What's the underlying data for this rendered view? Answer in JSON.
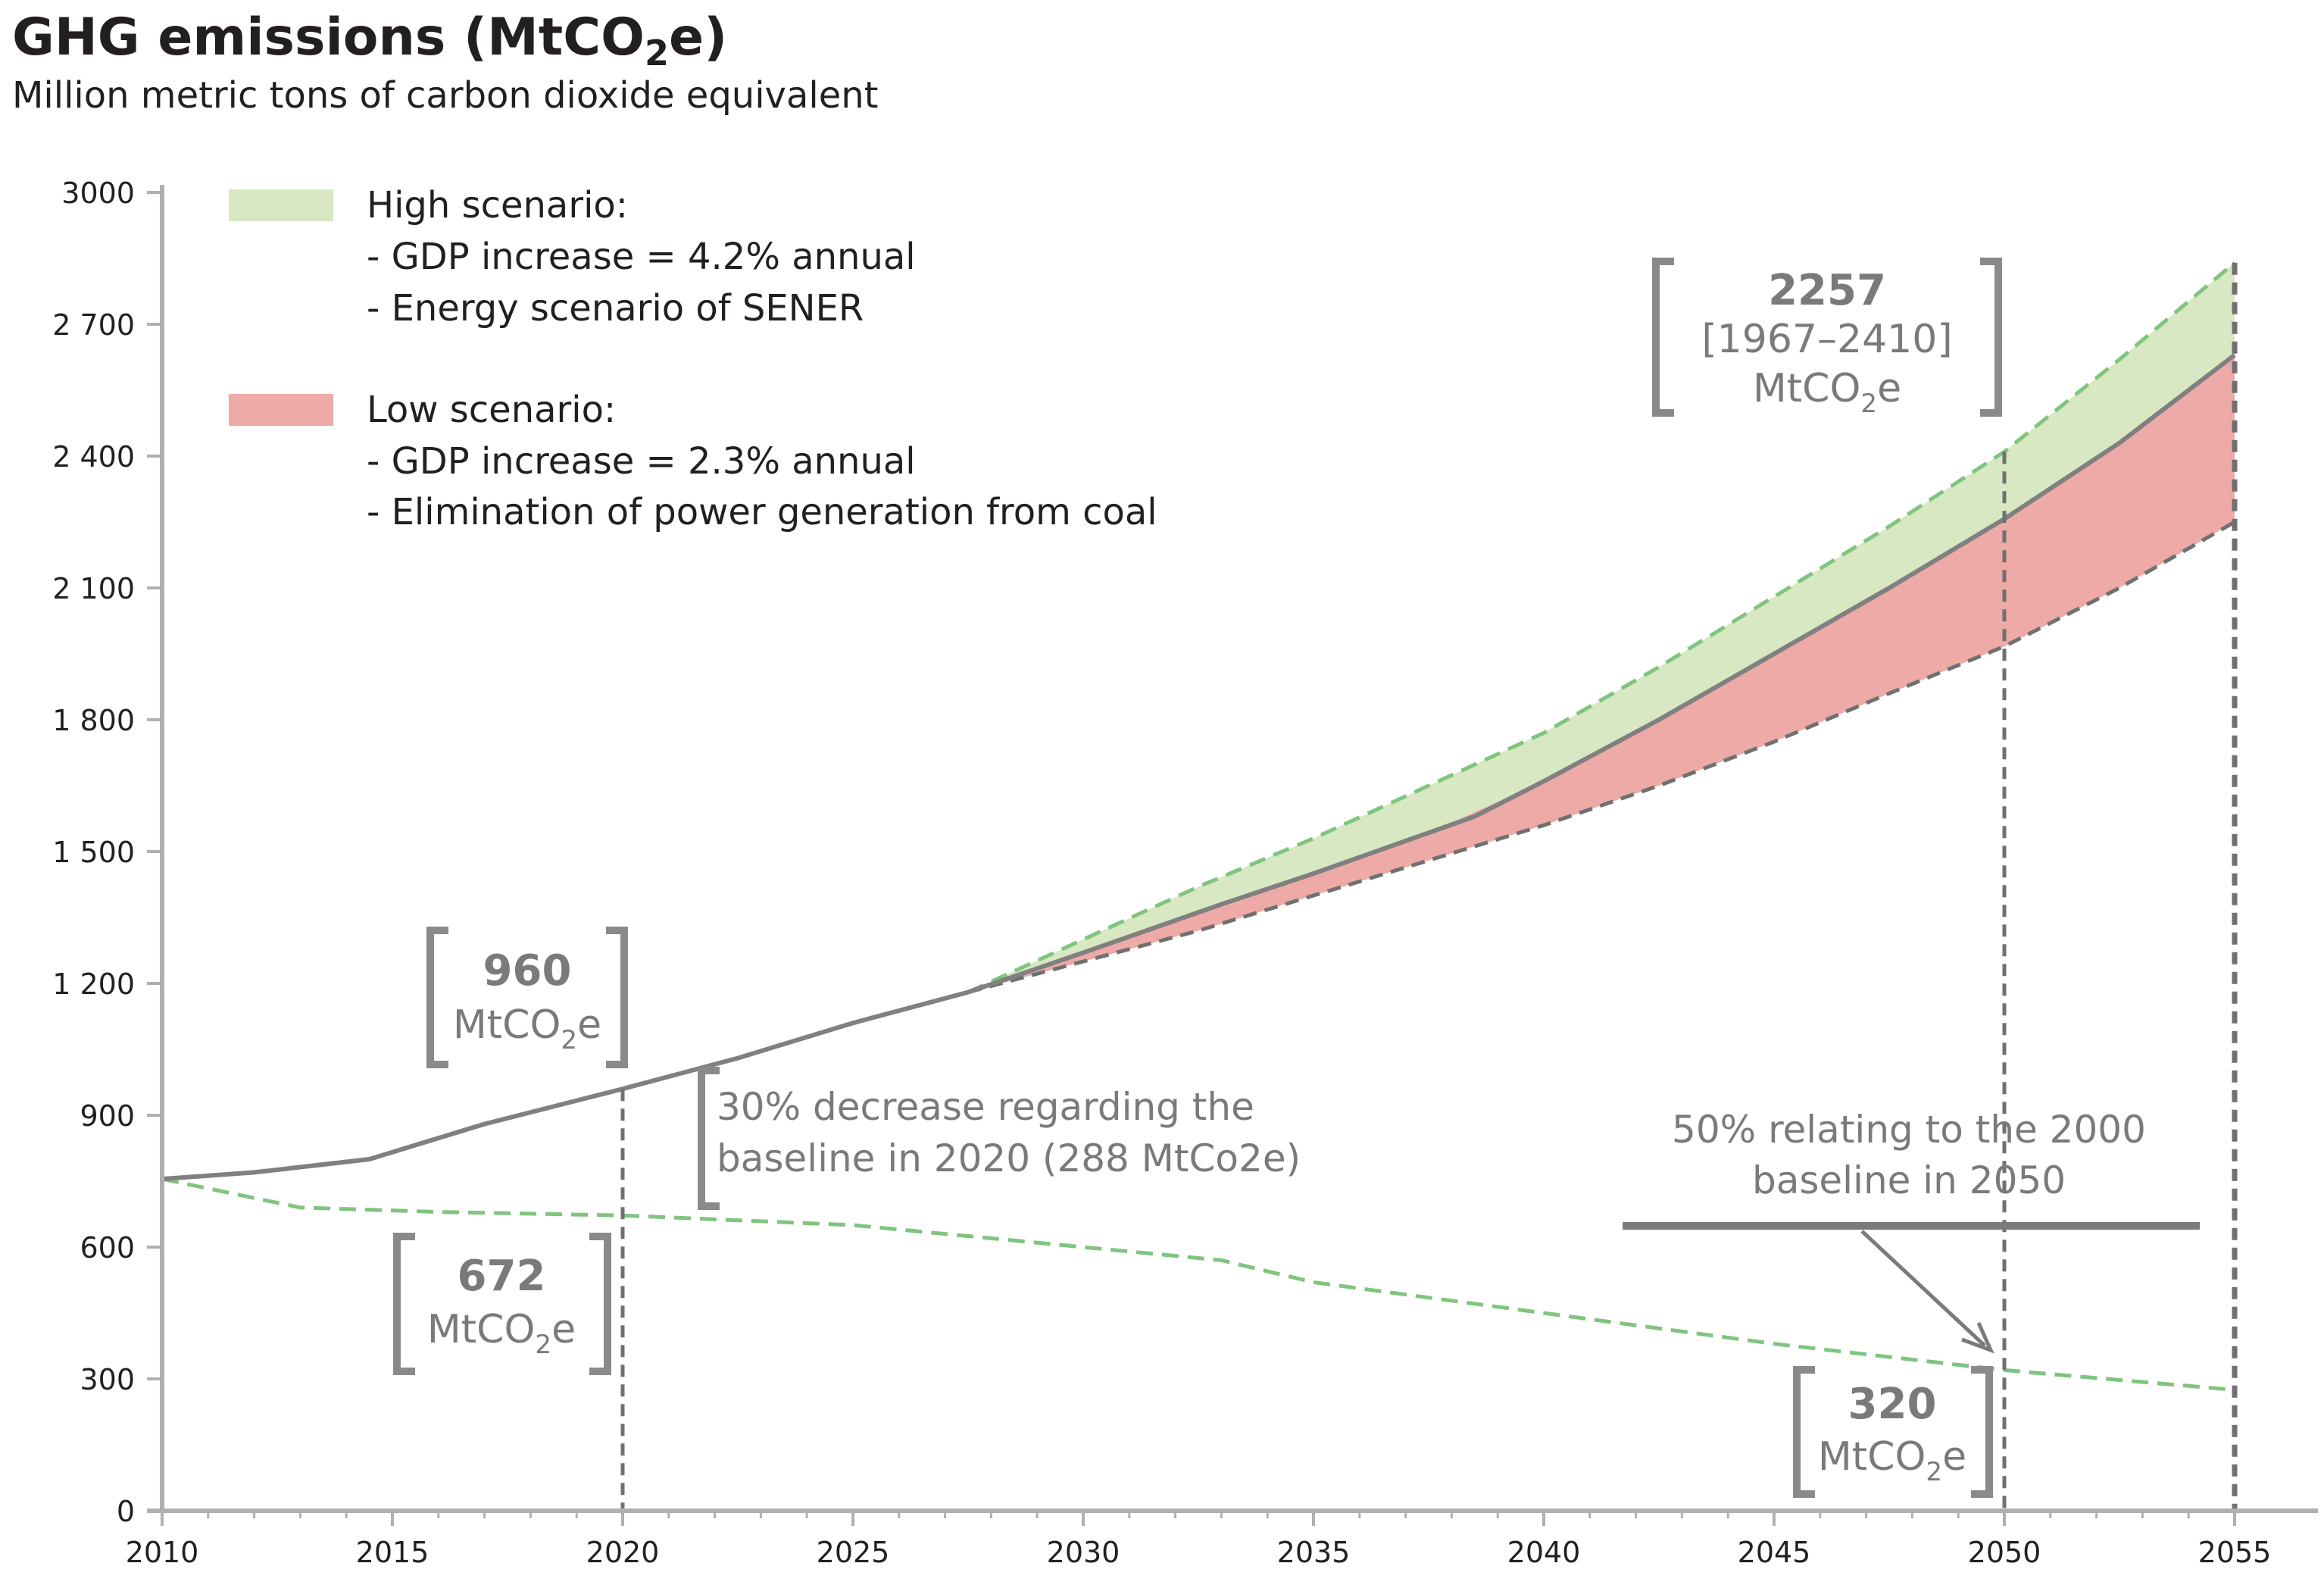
{
  "header": {
    "title_main": "GHG emissions (MtCO",
    "title_sub": "2",
    "title_end": "e)",
    "subtitle": "Million metric tons of carbon dioxide equivalent"
  },
  "legend": {
    "high": {
      "color": "#d8e8c2",
      "label": "High scenario:",
      "line1": "- GDP increase = 4.2% annual",
      "line2": "- Energy scenario of SENER"
    },
    "low": {
      "color": "#eeaaa6",
      "label": "Low scenario:",
      "line1": "- GDP increase = 2.3% annual",
      "line2": "- Elimination of power generation from coal"
    }
  },
  "annotations": {
    "a2020": {
      "value": "960",
      "unit_main": "MtCO",
      "unit_sub": "2",
      "unit_end": "e"
    },
    "a672": {
      "value": "672",
      "unit_main": "MtCO",
      "unit_sub": "2",
      "unit_end": "e"
    },
    "a2050": {
      "value": "2257",
      "range": "[1967–2410]",
      "unit_main": "MtCO",
      "unit_sub": "2",
      "unit_end": "e"
    },
    "a320": {
      "value": "320",
      "unit_main": "MtCO",
      "unit_sub": "2",
      "unit_end": "e"
    },
    "decrease_line1": "30% decrease regarding the",
    "decrease_line2": "baseline in 2020 (288 MtCo2e)",
    "fifty_line1": "50% relating to the 2000",
    "fifty_line2": "baseline in 2050"
  },
  "colors": {
    "baseline": "#808080",
    "green_dash": "#7fc47f",
    "grey_dash": "#707070",
    "axis": "#b0b0b0",
    "annotation": "#7a7a7a"
  },
  "chart_data": {
    "type": "line",
    "title": "GHG emissions (MtCO2e)",
    "subtitle": "Million metric tons of carbon dioxide equivalent",
    "xlim": [
      2010,
      2055
    ],
    "ylim": [
      0,
      3000
    ],
    "x_ticks": [
      2010,
      2015,
      2020,
      2025,
      2030,
      2035,
      2040,
      2045,
      2050,
      2055
    ],
    "y_ticks": [
      0,
      300,
      600,
      900,
      1200,
      1500,
      1800,
      2100,
      2400,
      2700,
      3000
    ],
    "y_tick_labels": [
      "0",
      "300",
      "600",
      "900",
      "1 200",
      "1 500",
      "1 800",
      "2 100",
      "2 400",
      "2 700",
      "3000"
    ],
    "grid": false,
    "series": [
      {
        "name": "",
        "style": "solid",
        "x": [
          2010,
          2012,
          2014.5,
          2017,
          2020,
          2022.5,
          2025,
          2027.5,
          2030,
          2033,
          2035,
          2038.5,
          2040,
          2042.5,
          2045,
          2047.5,
          2050,
          2052.5,
          2055
        ],
        "y": [
          755,
          770,
          800,
          880,
          960,
          1030,
          1110,
          1180,
          1270,
          1380,
          1450,
          1580,
          1660,
          1800,
          1950,
          2100,
          2257,
          2430,
          2630
        ]
      },
      {
        "name": "High scenario",
        "style": "dashed",
        "x": [
          2027.5,
          2030,
          2032.5,
          2035,
          2037.5,
          2040,
          2042.5,
          2045,
          2047.5,
          2050,
          2052.5,
          2055
        ],
        "y": [
          1180,
          1300,
          1420,
          1530,
          1650,
          1770,
          1920,
          2080,
          2240,
          2410,
          2620,
          2840
        ]
      },
      {
        "name": "Low scenario",
        "style": "dashed",
        "x": [
          2027.5,
          2030,
          2032.5,
          2035,
          2037.5,
          2040,
          2042.5,
          2045,
          2047.5,
          2050,
          2052.5,
          2055
        ],
        "y": [
          1180,
          1250,
          1320,
          1400,
          1480,
          1560,
          1650,
          1750,
          1860,
          1967,
          2100,
          2250
        ]
      },
      {
        "name": "",
        "style": "dashed",
        "x": [
          2010,
          2013,
          2016,
          2020,
          2025,
          2030,
          2033,
          2035,
          2040,
          2045,
          2050,
          2055
        ],
        "y": [
          755,
          690,
          680,
          672,
          650,
          600,
          570,
          520,
          450,
          380,
          320,
          275
        ]
      }
    ],
    "reference_lines": [
      2020,
      2050,
      2055
    ]
  }
}
